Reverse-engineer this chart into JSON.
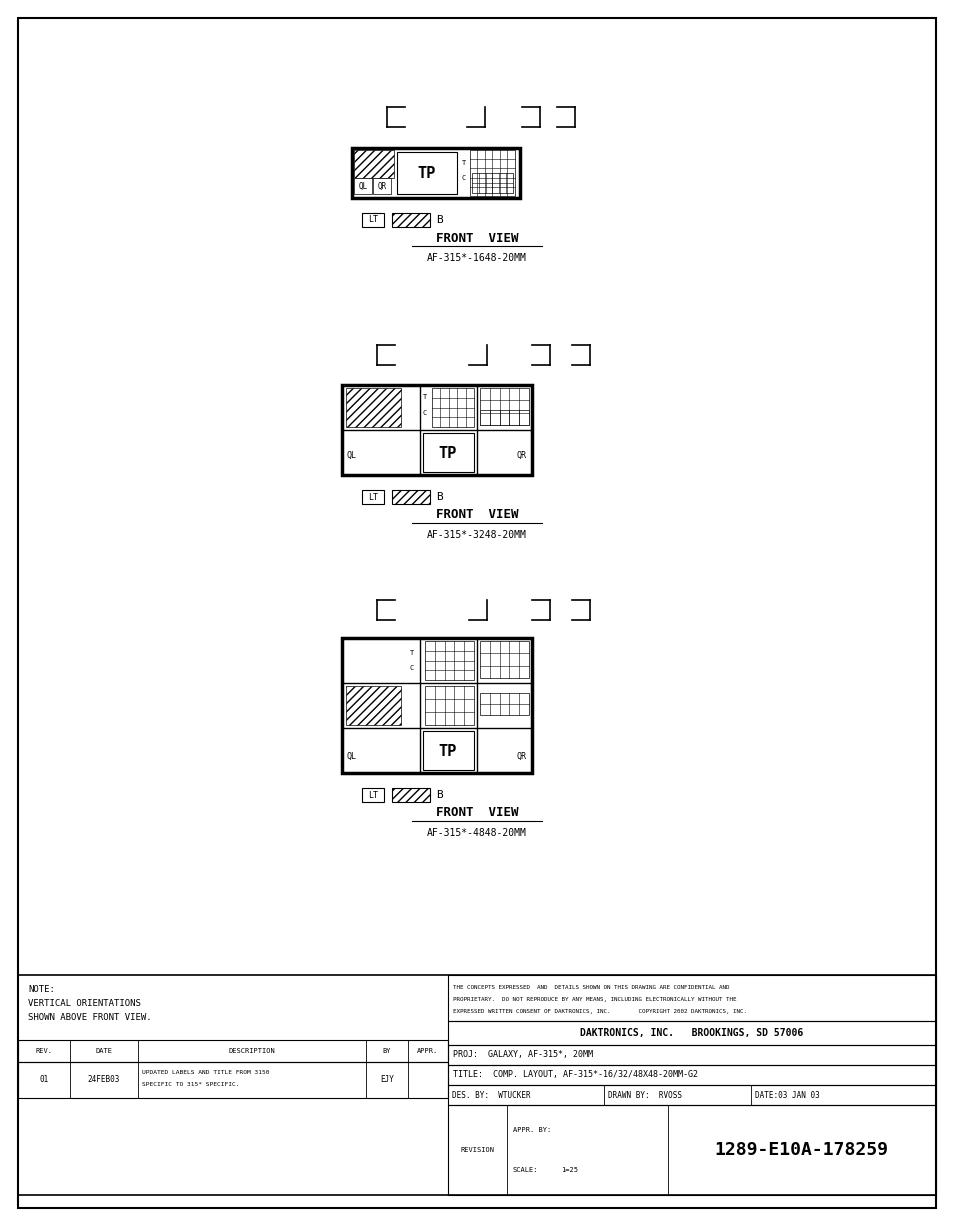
{
  "fig_width": 9.54,
  "fig_height": 12.26,
  "bg_color": "#ffffff",
  "line_color": "#000000",
  "company": "DAKTRONICS, INC.   BROOKINGS, SD 57006",
  "proj": "GALAXY, AF-315*, 20MM",
  "title_block": "COMP. LAYOUT, AF-315*-16/32/48X48-20MM-G2",
  "des_by": "WTUCKER",
  "drawn_by": "RVOSS",
  "date": "03 JAN 03",
  "scale": "25",
  "dwg_num": "1289-E10A-178259",
  "rev_row": [
    "01",
    "24FEB03",
    "UPDATED LABELS AND TITLE FROM 3150\nSPECIFIC TO 315* SPECIFIC.",
    "EJY",
    ""
  ],
  "note_lines": [
    "NOTE:",
    "VERTICAL ORIENTATIONS",
    "SHOWN ABOVE FRONT VIEW."
  ],
  "copyright_line1": "THE CONCEPTS EXPRESSED  AND  DETAILS SHOWN ON THIS DRAWING ARE CONFIDENTIAL AND",
  "copyright_line2": "PROPRIETARY.  DO NOT REPRODUCE BY ANY MEANS, INCLUDING ELECTRONICALLY WITHOUT THE",
  "copyright_line3": "EXPRESSED WRITTEN CONSENT OF DAKTRONICS, INC.        COPYRIGHT 2002 DAKTRONICS, INC.",
  "view1_label": "FRONT  VIEW",
  "view1_sub": "AF-315*-1648-20MM",
  "view2_label": "FRONT  VIEW",
  "view2_sub": "AF-315*-3248-20MM",
  "view3_label": "FRONT  VIEW",
  "view3_sub": "AF-315*-4848-20MM"
}
